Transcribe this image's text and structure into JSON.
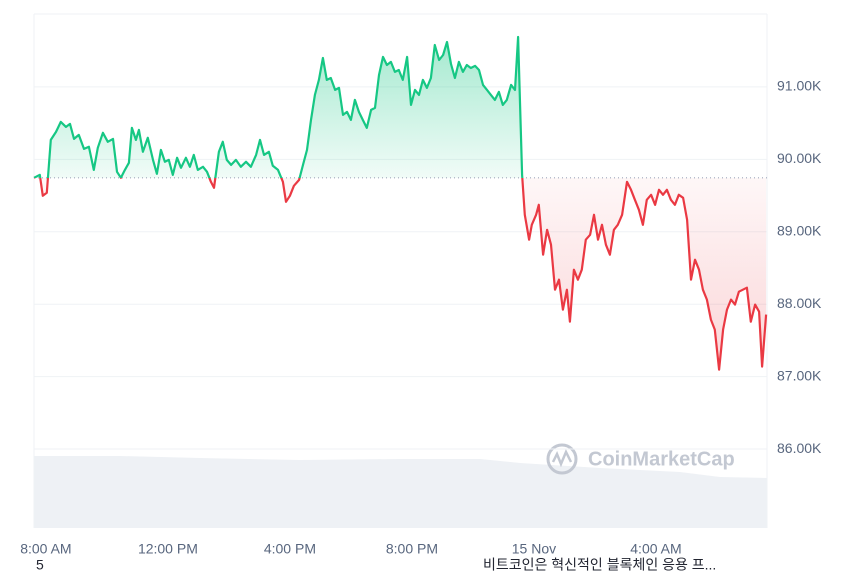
{
  "chart_data": {
    "type": "line",
    "x": [
      -0.39,
      -0.2,
      -0.1,
      0.03,
      0.16,
      0.33,
      0.49,
      0.66,
      0.79,
      0.92,
      1.08,
      1.25,
      1.41,
      1.57,
      1.7,
      1.87,
      2.03,
      2.2,
      2.33,
      2.46,
      2.59,
      2.72,
      2.82,
      2.95,
      3.05,
      3.18,
      3.34,
      3.51,
      3.64,
      3.77,
      3.9,
      4.03,
      4.16,
      4.3,
      4.43,
      4.59,
      4.72,
      4.85,
      4.98,
      5.15,
      5.28,
      5.41,
      5.51,
      5.67,
      5.8,
      5.93,
      6.07,
      6.23,
      6.39,
      6.56,
      6.72,
      6.89,
      7.02,
      7.15,
      7.31,
      7.44,
      7.61,
      7.77,
      7.87,
      8.0,
      8.13,
      8.3,
      8.43,
      8.56,
      8.69,
      8.82,
      8.95,
      9.08,
      9.21,
      9.34,
      9.48,
      9.61,
      9.74,
      9.87,
      10.0,
      10.13,
      10.26,
      10.39,
      10.52,
      10.66,
      10.79,
      10.92,
      11.05,
      11.18,
      11.31,
      11.44,
      11.57,
      11.7,
      11.84,
      11.97,
      12.1,
      12.23,
      12.36,
      12.49,
      12.62,
      12.75,
      12.89,
      13.02,
      13.15,
      13.28,
      13.41,
      13.54,
      13.67,
      13.8,
      13.93,
      14.07,
      14.2,
      14.33,
      14.46,
      14.59,
      14.72,
      14.85,
      14.98,
      15.11,
      15.25,
      15.38,
      15.48,
      15.61,
      15.7,
      15.84,
      15.93,
      16.07,
      16.16,
      16.3,
      16.43,
      16.56,
      16.69,
      16.82,
      16.95,
      17.08,
      17.18,
      17.31,
      17.44,
      17.57,
      17.7,
      17.84,
      17.97,
      18.1,
      18.23,
      18.36,
      18.49,
      18.62,
      18.75,
      18.89,
      19.05,
      19.18,
      19.31,
      19.44,
      19.57,
      19.7,
      19.84,
      19.97,
      20.1,
      20.23,
      20.36,
      20.49,
      20.62,
      20.75,
      20.89,
      21.02,
      21.15,
      21.28,
      21.41,
      21.54,
      21.67,
      21.8,
      21.93,
      22.07,
      22.2,
      22.33,
      22.46,
      22.59,
      22.72,
      22.85,
      22.98,
      23.11,
      23.25,
      23.38,
      23.48,
      23.61
    ],
    "series": [
      {
        "values": [
          89745,
          89786,
          89497,
          89538,
          90269,
          90379,
          90517,
          90448,
          90490,
          90283,
          90338,
          90145,
          90173,
          89855,
          90159,
          90366,
          90242,
          90283,
          89828,
          89745,
          89855,
          89952,
          90435,
          90269,
          90407,
          90104,
          90297,
          89993,
          89800,
          90131,
          89966,
          89993,
          89786,
          90021,
          89883,
          90021,
          89897,
          90062,
          89855,
          89897,
          89828,
          89690,
          89607,
          90104,
          90242,
          89993,
          89924,
          89993,
          89897,
          89966,
          89897,
          90062,
          90269,
          90062,
          90104,
          89911,
          89855,
          89690,
          89414,
          89497,
          89635,
          89717,
          89924,
          90131,
          90545,
          90890,
          91097,
          91400,
          91097,
          91124,
          90959,
          90986,
          90614,
          90655,
          90545,
          90821,
          90655,
          90545,
          90435,
          90683,
          90710,
          91165,
          91414,
          91303,
          91345,
          91207,
          91234,
          91097,
          91414,
          90752,
          90959,
          90890,
          91097,
          90986,
          91124,
          91579,
          91372,
          91441,
          91621,
          91317,
          91124,
          91345,
          91207,
          91303,
          91262,
          91290,
          91234,
          91028,
          90959,
          90890,
          90821,
          90931,
          90752,
          90821,
          91028,
          90959,
          91690,
          89786,
          89235,
          88890,
          89097,
          89235,
          89372,
          88683,
          89028,
          88821,
          88200,
          88338,
          87925,
          88200,
          87759,
          88476,
          88338,
          88476,
          88890,
          88959,
          89235,
          88890,
          89097,
          88821,
          88683,
          89028,
          89097,
          89235,
          89690,
          89579,
          89441,
          89304,
          89097,
          89441,
          89510,
          89372,
          89579,
          89510,
          89579,
          89441,
          89372,
          89510,
          89469,
          89166,
          88338,
          88614,
          88476,
          88200,
          88063,
          87787,
          87649,
          87097,
          87649,
          87925,
          88063,
          87994,
          88173,
          88200,
          88228,
          87759,
          87994,
          87897,
          87139,
          87856
        ],
        "color_up": "#16c784",
        "color_down": "#ea3943"
      }
    ],
    "baseline": 89745,
    "xlim": [
      -0.39,
      23.64
    ],
    "xticks": [
      {
        "value": 0,
        "label": "8:00 AM"
      },
      {
        "value": 4,
        "label": "12:00 PM"
      },
      {
        "value": 8,
        "label": "4:00 PM"
      },
      {
        "value": 12,
        "label": "8:00 PM"
      },
      {
        "value": 16,
        "label": "15 Nov"
      },
      {
        "value": 20,
        "label": "4:00 AM"
      }
    ],
    "ylim": [
      84910,
      92007
    ],
    "yticks": [
      {
        "value": 86000,
        "label": "86.00K"
      },
      {
        "value": 87000,
        "label": "87.00K"
      },
      {
        "value": 88000,
        "label": "88.00K"
      },
      {
        "value": 89000,
        "label": "89.00K"
      },
      {
        "value": 90000,
        "label": "90.00K"
      },
      {
        "value": 91000,
        "label": "91.00K"
      }
    ],
    "grid": true,
    "watermark": "CoinMarketCap"
  },
  "footer": {
    "left": "5",
    "right": "비트코인은 혁신적인 블록체인 응용 프..."
  }
}
